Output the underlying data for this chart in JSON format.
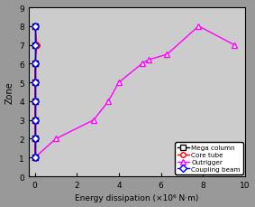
{
  "title": "",
  "xlabel": "Energy dissipation (×10⁶ N·m)",
  "ylabel": "Zone",
  "xlim": [
    -0.3,
    10
  ],
  "ylim": [
    0,
    9
  ],
  "xticks": [
    0,
    2,
    4,
    6,
    8,
    10
  ],
  "yticks": [
    0,
    1,
    2,
    3,
    4,
    5,
    6,
    7,
    8,
    9
  ],
  "fig_facecolor": "#999999",
  "ax_facecolor": "#cccccc",
  "mega_column": {
    "x": [
      0,
      0,
      0,
      0,
      0,
      0,
      0,
      0
    ],
    "y": [
      1,
      2,
      3,
      4,
      5,
      6,
      7,
      8
    ],
    "color": "black",
    "marker": "s",
    "markersize": 4,
    "linewidth": 1.0,
    "label": "Mega column"
  },
  "core_tube": {
    "x": [
      0,
      0,
      0,
      0,
      0,
      0,
      0.1,
      0
    ],
    "y": [
      1,
      2,
      3,
      4,
      5,
      6,
      7,
      8
    ],
    "color": "red",
    "marker": "o",
    "markersize": 4,
    "linewidth": 1.0,
    "label": "Core tube"
  },
  "outrigger": {
    "x": [
      0,
      1.0,
      2.8,
      3.5,
      4.0,
      5.1,
      5.4,
      6.3,
      7.8,
      9.5
    ],
    "y": [
      1,
      2,
      3,
      4,
      5,
      6,
      6.2,
      6.5,
      8,
      7
    ],
    "color": "#ff00ff",
    "marker": "^",
    "markersize": 4,
    "linewidth": 1.0,
    "label": "Outrigger"
  },
  "coupling_beam": {
    "x": [
      0,
      0,
      0,
      0,
      0,
      0,
      0,
      0
    ],
    "y": [
      1,
      2,
      3,
      4,
      5,
      6,
      7,
      8
    ],
    "color": "blue",
    "marker": "D",
    "markersize": 4,
    "linewidth": 1.0,
    "label": "Coupling beam"
  },
  "legend": {
    "loc": "lower right",
    "fontsize": 5.5,
    "order": [
      "mega_column",
      "core_tube",
      "outrigger",
      "coupling_beam"
    ]
  }
}
